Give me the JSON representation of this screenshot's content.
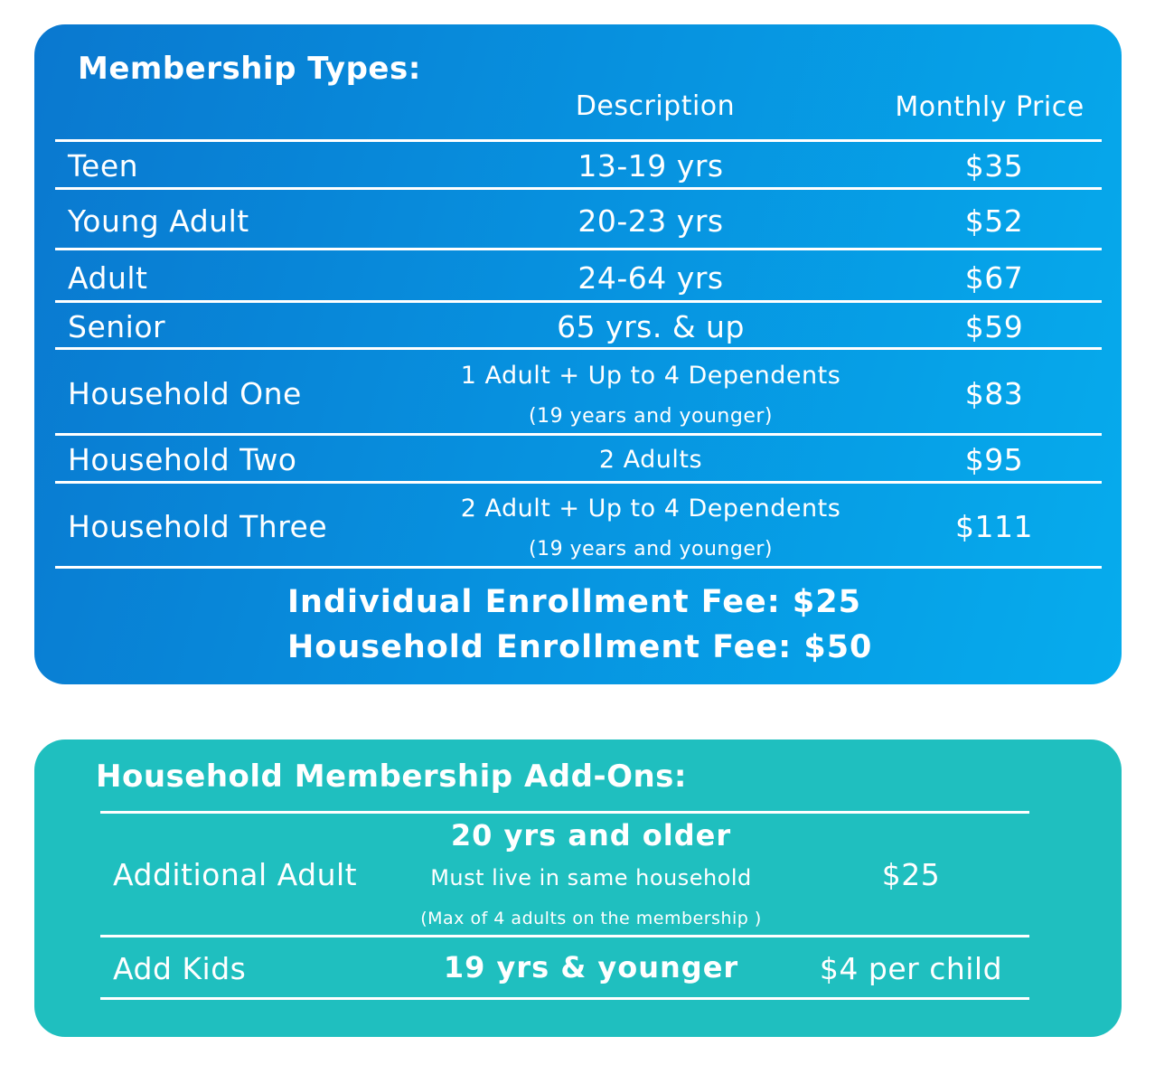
{
  "membership": {
    "title": "Membership Types:",
    "header_description": "Description",
    "header_price": "Monthly Price",
    "rows": [
      {
        "name": "Teen",
        "description": "13-19 yrs",
        "price": "$35"
      },
      {
        "name": "Young Adult",
        "description": "20-23 yrs",
        "price": "$52"
      },
      {
        "name": "Adult",
        "description": "24-64 yrs",
        "price": "$67"
      },
      {
        "name": "Senior",
        "description": "65 yrs. & up",
        "price": "$59"
      },
      {
        "name": "Household One",
        "description": "1 Adult + Up to 4 Dependents",
        "description_note": "(19 years and younger)",
        "price": "$83"
      },
      {
        "name": "Household Two",
        "description": "2 Adults",
        "price": "$95"
      },
      {
        "name": "Household Three",
        "description": "2 Adult + Up to 4 Dependents",
        "description_note": "(19 years and younger)",
        "price": "$111"
      }
    ],
    "fee_individual": "Individual Enrollment Fee: $25",
    "fee_household": "Household Enrollment Fee: $50"
  },
  "addons": {
    "title": "Household Membership Add-Ons:",
    "rows": [
      {
        "name": "Additional Adult",
        "description": "20 yrs and older",
        "description_line2": "Must live in same household",
        "description_note": "(Max of 4 adults on the membership )",
        "price": "$25"
      },
      {
        "name": "Add Kids",
        "description": "19 yrs & younger",
        "price": "$4 per child"
      }
    ]
  },
  "colors": {
    "panel1_start": "#0a78cf",
    "panel1_end": "#06aced",
    "panel2": "#1fbfbf",
    "text": "#ffffff"
  }
}
